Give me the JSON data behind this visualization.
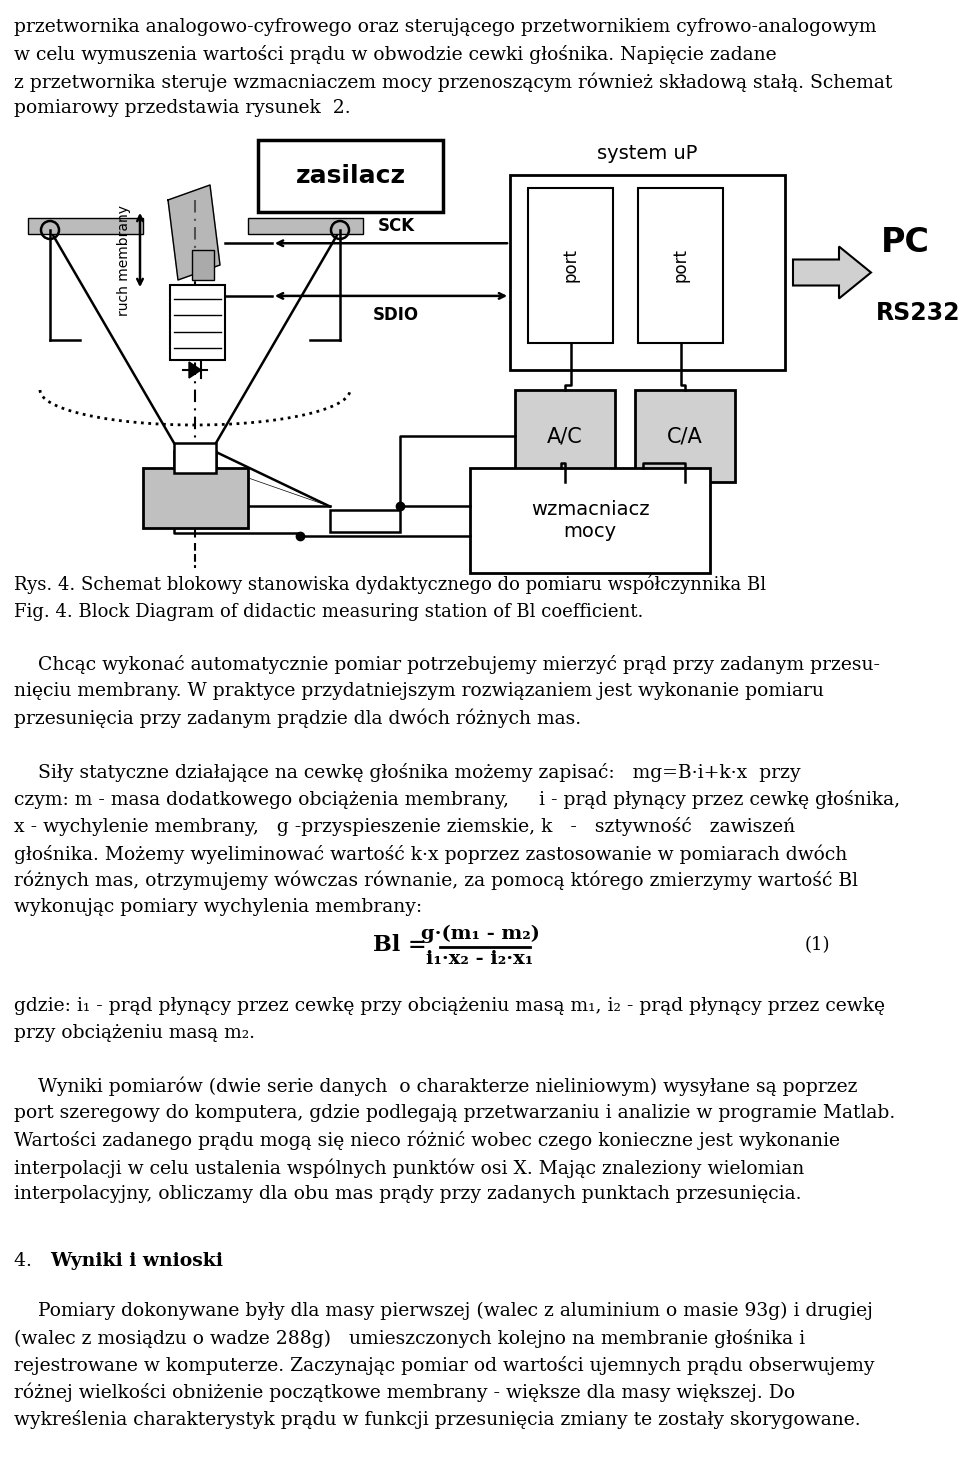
{
  "fig_width": 9.6,
  "fig_height": 14.72,
  "dpi": 100,
  "bg_color": "#ffffff",
  "top_text": [
    "przetwornika analogowo-cyfrowego oraz sterującego przetwornikiem cyfrowo-analogowym",
    "w celu wymuszenia wartości prądu w obwodzie cewki głośnika. Napięcie zadane",
    "z przetwornika steruje wzmacniaczem mocy przenoszącym również składową stałą. Schemat",
    "pomiarowy przedstawia rysunek  2."
  ],
  "caption_text": [
    "Rys. 4. Schemat blokowy stanowiska dydaktycznego do pomiaru współczynnika Bl",
    "Fig. 4. Block Diagram of didactic measuring station of Bl coefficient."
  ],
  "body_text": [
    "    Chcąc wykonać automatycznie pomiar potrzebujemy mierzyć prąd przy zadanym przesu-",
    "nięciu membrany. W praktyce przydatniejszym rozwiązaniem jest wykonanie pomiaru",
    "przesunięcia przy zadanym prądzie dla dwóch różnych mas.",
    "",
    "    Siły statyczne działające na cewkę głośnika możemy zapisać:   mg=B·i+k·x  przy",
    "czym: m - masa dodatkowego obciążenia membrany,     i - prąd płynący przez cewkę głośnika,",
    "x - wychylenie membrany,   g -przyspieszenie ziemskie, k   -   sztywność   zawiszeń",
    "głośnika. Możemy wyeliminować wartość k·x poprzez zastosowanie w pomiarach dwóch",
    "różnych mas, otrzymujemy wówczas równanie, za pomocą którego zmierzymy wartość Bl",
    "wykonując pomiary wychylenia membrany:"
  ],
  "section4_title": "4.  Wyniki i wnioski",
  "section4_text": [
    "    Pomiary dokonywane były dla masy pierwszej (walec z aluminium o masie 93g) i drugiej",
    "(walec z mosiądzu o wadze 288g)   umieszczonych kolejno na membranie głośnika i",
    "rejestrowane w komputerze. Zaczynając pomiar od wartości ujemnych prądu obserwujemy",
    "różnej wielkości obniżenie początkowe membrany - większe dla masy większej. Do",
    "wykreślenia charakterystyk prądu w funkcji przesunięcia zmiany te zostały skorygowane."
  ],
  "gray_fill": "#c0c0c0",
  "light_gray_fill": "#d0d0d0",
  "dark_gray": "#808080"
}
